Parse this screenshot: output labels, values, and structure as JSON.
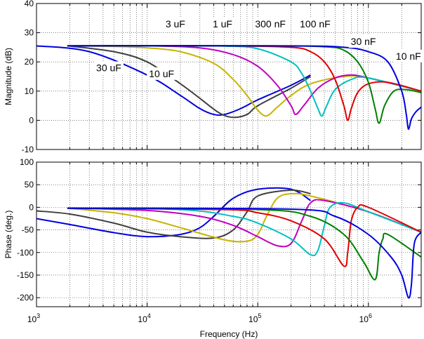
{
  "chart_data": [
    {
      "type": "line",
      "title": "",
      "xlabel": "",
      "ylabel": "Magnitude (dB)",
      "xscale": "log",
      "xlim": [
        1000,
        3000000
      ],
      "ylim": [
        -10,
        40
      ],
      "yticks": [
        -10,
        0,
        10,
        20,
        30,
        40
      ],
      "grid": true,
      "annotations": [
        {
          "text": "3 uF",
          "x": 18000,
          "y": 33
        },
        {
          "text": "1 uF",
          "x": 48000,
          "y": 33
        },
        {
          "text": "300 nF",
          "x": 130000,
          "y": 33
        },
        {
          "text": "100 nF",
          "x": 330000,
          "y": 33
        },
        {
          "text": "30 nF",
          "x": 900000,
          "y": 27
        },
        {
          "text": "10 nF",
          "x": 2300000,
          "y": 22
        },
        {
          "text": "30 uF",
          "x": 4500,
          "y": 18
        },
        {
          "text": "10 uF",
          "x": 13500,
          "y": 16
        }
      ],
      "series": [
        {
          "color": "#0000e0",
          "x": [
            1000,
            3000,
            10000,
            20000,
            30000,
            40000,
            50000,
            70000,
            100000,
            200000,
            300000
          ],
          "y": [
            25.5,
            23.5,
            15.5,
            8.5,
            4,
            2,
            2,
            4,
            7,
            12,
            15.5
          ]
        },
        {
          "color": "#404040",
          "x": [
            1900,
            5000,
            10000,
            20000,
            30000,
            45000,
            60000,
            80000,
            100000,
            200000,
            300000
          ],
          "y": [
            25.5,
            23.5,
            20,
            12.5,
            7.5,
            2.5,
            1,
            2,
            5,
            11,
            15
          ]
        },
        {
          "color": "#c8b400",
          "x": [
            1900,
            5000,
            10000,
            20000,
            40000,
            60000,
            80000,
            100000,
            120000,
            150000,
            200000,
            300000,
            600000,
            1000000,
            3000000
          ],
          "y": [
            25.5,
            25.3,
            24.8,
            23.5,
            19.5,
            14,
            8.5,
            3.5,
            1.5,
            4.5,
            8.5,
            12.5,
            15,
            14.5,
            10
          ]
        },
        {
          "color": "#c000c0",
          "x": [
            1900,
            10000,
            30000,
            60000,
            100000,
            150000,
            200000,
            220000,
            260000,
            350000,
            500000,
            700000,
            1000000,
            3000000
          ],
          "y": [
            25.5,
            25.5,
            24.8,
            22.5,
            18.5,
            12,
            5,
            2,
            5,
            11,
            14.5,
            15.5,
            14.5,
            10
          ]
        },
        {
          "color": "#00c0c0",
          "x": [
            1900,
            10000,
            50000,
            100000,
            200000,
            250000,
            300000,
            350000,
            380000,
            420000,
            500000,
            700000,
            1000000,
            3000000
          ],
          "y": [
            25.5,
            25.5,
            25.4,
            24.5,
            20,
            16,
            10,
            4,
            1.5,
            5,
            10.5,
            14,
            14.5,
            10
          ]
        },
        {
          "color": "#e00000",
          "x": [
            1900,
            50000,
            200000,
            300000,
            400000,
            500000,
            600000,
            650000,
            700000,
            800000,
            1000000,
            1500000,
            3000000
          ],
          "y": [
            25.5,
            25.5,
            25,
            23.5,
            20,
            14,
            5,
            0,
            4,
            9.5,
            12.5,
            13,
            10
          ]
        },
        {
          "color": "#008000",
          "x": [
            1900,
            100000,
            400000,
            600000,
            800000,
            1000000,
            1150000,
            1250000,
            1400000,
            1700000,
            2200000,
            3000000
          ],
          "y": [
            25.5,
            25.5,
            25.2,
            24,
            20,
            13,
            4,
            -1,
            5,
            10,
            10.5,
            9.5
          ]
        },
        {
          "color": "#0000e0",
          "x": [
            1900,
            200000,
            600000,
            1000000,
            1500000,
            2000000,
            2200000,
            2300000,
            2450000,
            2700000,
            3000000
          ],
          "y": [
            25.5,
            25.5,
            25,
            23.5,
            20,
            10,
            2,
            -3,
            0.5,
            3,
            4.5
          ]
        }
      ]
    },
    {
      "type": "line",
      "title": "",
      "xlabel": "Frequency (Hz)",
      "ylabel": "Phase (deg.)",
      "xscale": "log",
      "xlim": [
        1000,
        3000000
      ],
      "ylim": [
        -220,
        100
      ],
      "yticks": [
        -200,
        -150,
        -100,
        -50,
        0,
        50,
        100
      ],
      "xtick_labels": [
        {
          "base": "10",
          "exp": "3",
          "value": 1000
        },
        {
          "base": "10",
          "exp": "4",
          "value": 10000
        },
        {
          "base": "10",
          "exp": "5",
          "value": 100000
        },
        {
          "base": "10",
          "exp": "6",
          "value": 1000000
        }
      ],
      "grid": true,
      "series": [
        {
          "color": "#0000e0",
          "x": [
            1000,
            2000,
            5000,
            10000,
            20000,
            30000,
            40000,
            60000,
            100000,
            200000,
            300000
          ],
          "y": [
            -25,
            -38,
            -56,
            -65,
            -60,
            -45,
            -20,
            20,
            40,
            40,
            15
          ]
        },
        {
          "color": "#404040",
          "x": [
            1000,
            2000,
            5000,
            10000,
            20000,
            40000,
            60000,
            80000,
            100000,
            200000,
            300000
          ],
          "y": [
            -8,
            -15,
            -35,
            -55,
            -65,
            -68,
            -50,
            -10,
            25,
            38,
            30
          ]
        },
        {
          "color": "#c8b400",
          "x": [
            1900,
            5000,
            10000,
            20000,
            50000,
            80000,
            100000,
            120000,
            150000,
            200000,
            300000,
            1000000,
            3000000
          ],
          "y": [
            -2,
            -12,
            -25,
            -45,
            -72,
            -75,
            -60,
            -20,
            20,
            30,
            25,
            -10,
            -55
          ]
        },
        {
          "color": "#c000c0",
          "x": [
            1900,
            10000,
            30000,
            60000,
            100000,
            150000,
            200000,
            250000,
            300000,
            400000,
            1000000,
            3000000
          ],
          "y": [
            -2,
            -7,
            -20,
            -40,
            -65,
            -85,
            -80,
            -30,
            10,
            15,
            -10,
            -55
          ]
        },
        {
          "color": "#00c0c0",
          "x": [
            1900,
            20000,
            60000,
            100000,
            200000,
            300000,
            350000,
            400000,
            450000,
            600000,
            1000000,
            3000000
          ],
          "y": [
            -2,
            -5,
            -20,
            -35,
            -70,
            -105,
            -95,
            -40,
            0,
            10,
            -10,
            -55
          ]
        },
        {
          "color": "#e00000",
          "x": [
            1900,
            50000,
            100000,
            200000,
            400000,
            600000,
            650000,
            700000,
            800000,
            1000000,
            3000000
          ],
          "y": [
            -2,
            -5,
            -12,
            -30,
            -70,
            -130,
            -100,
            -30,
            0,
            0,
            -55
          ]
        },
        {
          "color": "#008000",
          "x": [
            1900,
            100000,
            300000,
            600000,
            900000,
            1150000,
            1250000,
            1350000,
            1500000,
            3000000
          ],
          "y": [
            -2,
            -5,
            -20,
            -60,
            -120,
            -160,
            -100,
            -70,
            -60,
            -110
          ]
        },
        {
          "color": "#0000e0",
          "x": [
            1900,
            200000,
            500000,
            1000000,
            1600000,
            2000000,
            2300000,
            2450000,
            2600000,
            3000000
          ],
          "y": [
            -2,
            -4,
            -20,
            -60,
            -110,
            -150,
            -200,
            -170,
            -80,
            -55
          ]
        }
      ]
    }
  ]
}
